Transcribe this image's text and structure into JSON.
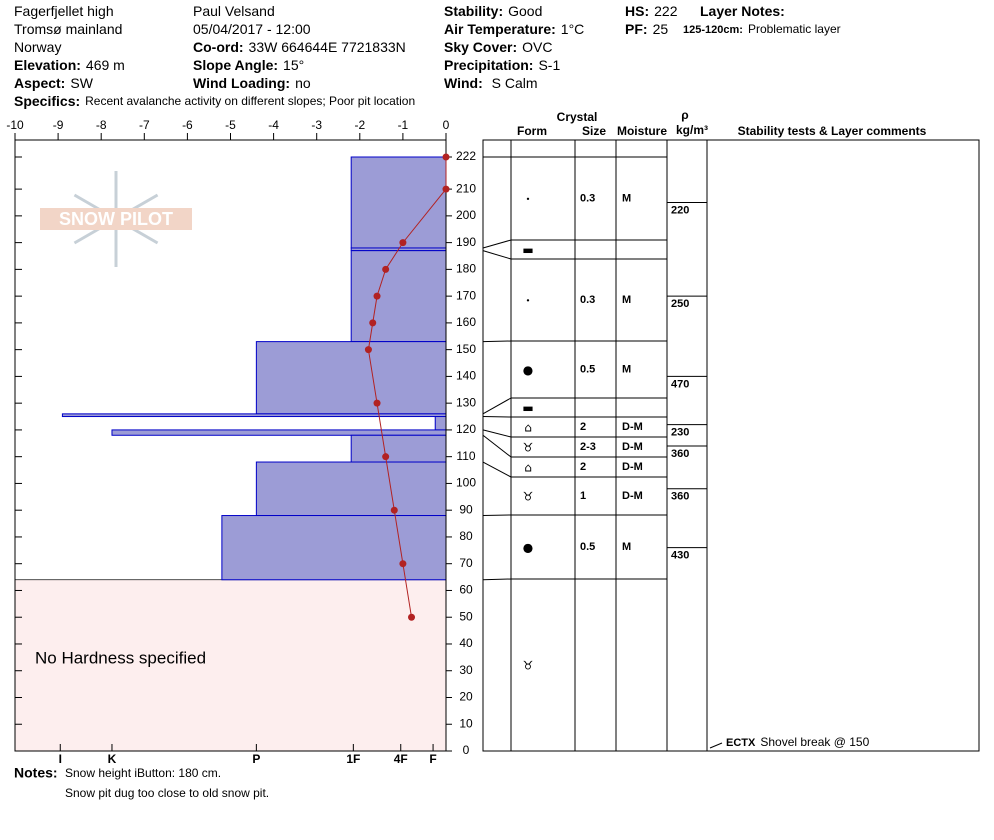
{
  "header": {
    "fields": [
      {
        "value": "Fagerfjellet high"
      },
      {
        "value": "Tromsø mainland"
      },
      {
        "value": "Norway"
      },
      {
        "label": "Elevation:",
        "value": "469 m"
      },
      {
        "label": "Aspect:",
        "value": "SW"
      },
      {
        "label": "Specifics:",
        "value": "Recent avalanche activity on different slopes;  Poor pit location"
      },
      {
        "value": "Paul Velsand"
      },
      {
        "value": "05/04/2017 - 12:00"
      },
      {
        "label": "Co-ord:",
        "value": "33W 664644E 7721833N"
      },
      {
        "label": "Slope Angle:",
        "value": "15°"
      },
      {
        "label": "Wind Loading:",
        "value": "no"
      },
      {
        "label": "Stability:",
        "value": "Good"
      },
      {
        "label": "Air Temperature:",
        "value": "1°C"
      },
      {
        "label": "Sky Cover:",
        "value": "OVC"
      },
      {
        "label": "Precipitation:",
        "value": "S-1"
      },
      {
        "label": "Wind:",
        "value": " S  Calm"
      },
      {
        "label": "HS:",
        "value": "222"
      },
      {
        "label": "PF:",
        "value": "25"
      },
      {
        "label": "Layer Notes:"
      },
      {
        "label": "125-120cm:",
        "value": "Problematic layer"
      }
    ],
    "notes": {
      "label": "Notes:",
      "lines": [
        "Snow height iButton: 180 cm.",
        "Snow pit dug too close to old snow pit."
      ]
    },
    "logo": "SNOW PILOT"
  },
  "chart_data": {
    "type": "snowpit",
    "xlim": [
      -10,
      0
    ],
    "xticks": [
      -10,
      -9,
      -8,
      -7,
      -6,
      -5,
      -4,
      -3,
      -2,
      -1,
      0
    ],
    "ylim": [
      0,
      222
    ],
    "yticks": [
      0,
      10,
      20,
      30,
      40,
      50,
      60,
      70,
      80,
      90,
      100,
      110,
      120,
      130,
      140,
      150,
      160,
      170,
      180,
      190,
      200,
      210,
      222
    ],
    "temperature": {
      "color": "#b22222",
      "heights": [
        222,
        210,
        190,
        180,
        170,
        160,
        150,
        130,
        110,
        90,
        70,
        50
      ],
      "values": [
        0,
        0,
        -1,
        -1.4,
        -1.6,
        -1.7,
        -1.8,
        -1.6,
        -1.4,
        -1.2,
        -1,
        -0.8
      ]
    },
    "hardness_lim": [
      10,
      0
    ],
    "hardness_ticks": [
      {
        "value": 8.95,
        "label": "I"
      },
      {
        "value": 7.75,
        "label": "K"
      },
      {
        "value": 4.4,
        "label": "P"
      },
      {
        "value": 2.15,
        "label": "1F"
      },
      {
        "value": 1.05,
        "label": "4F"
      },
      {
        "value": 0.3,
        "label": "F"
      }
    ],
    "hardness_color": "#9c9cd6",
    "no_hardness_label": "No Hardness specified",
    "layers": [
      {
        "top": 222,
        "bottom": 188,
        "hardness": 2.2,
        "form": "•",
        "size": "0.3",
        "moisture": "M"
      },
      {
        "top": 188,
        "bottom": 187,
        "hardness": 2.2,
        "form": "▬"
      },
      {
        "top": 187,
        "bottom": 153,
        "hardness": 2.2,
        "form": "•",
        "size": "0.3",
        "moisture": "M"
      },
      {
        "top": 153,
        "bottom": 126,
        "hardness": 4.4,
        "form": "●",
        "size": "0.5",
        "moisture": "M"
      },
      {
        "top": 126,
        "bottom": 125,
        "hardness": 8.9,
        "form": "▬"
      },
      {
        "top": 125,
        "bottom": 120,
        "hardness": 0.25,
        "form": "⌂",
        "size": "2",
        "moisture": "D-M"
      },
      {
        "top": 120,
        "bottom": 118,
        "hardness": 7.75,
        "form": "♉",
        "size": "2-3",
        "moisture": "D-M"
      },
      {
        "top": 118,
        "bottom": 108,
        "hardness": 2.2,
        "form": "⌂",
        "size": "2",
        "moisture": "D-M"
      },
      {
        "top": 108,
        "bottom": 88,
        "hardness": 4.4,
        "form": "♉",
        "size": "1",
        "moisture": "D-M"
      },
      {
        "top": 88,
        "bottom": 64,
        "hardness": 5.2,
        "form": "●",
        "size": "0.5",
        "moisture": "M"
      },
      {
        "top": 64,
        "bottom": 0,
        "form": "♉"
      }
    ],
    "density": {
      "heights": [
        205,
        170,
        140,
        122,
        114,
        98,
        76
      ],
      "values": [
        220,
        250,
        470,
        230,
        360,
        360,
        430
      ]
    },
    "column_headers": {
      "crystal": "Crystal",
      "form": "Form",
      "size": "Size",
      "moisture": "Moisture",
      "rho": "ρ",
      "density_unit": "kg/m³",
      "comments": "Stability tests & Layer comments"
    },
    "tests": [
      {
        "code": "ECTX",
        "comment": "Shovel break @ 150"
      }
    ]
  }
}
